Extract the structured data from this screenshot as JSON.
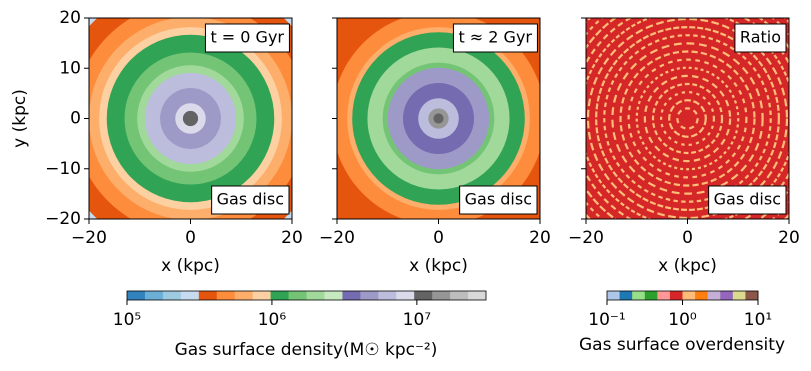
{
  "chart_data": [
    {
      "type": "image",
      "annotations": [
        "t = 0 Gyr",
        "Gas disc"
      ],
      "xlabel": "x (kpc)",
      "ylabel": "y (kpc)",
      "xlim": [
        -20,
        20
      ],
      "ylim": [
        -20,
        20
      ],
      "xticks": [
        {
          "value": -20,
          "label": "−20"
        },
        0,
        20
      ],
      "yticks": [
        {
          "value": -20,
          "label": "−20"
        },
        {
          "value": -10,
          "label": "−10"
        },
        0,
        10,
        20
      ]
    },
    {
      "type": "image",
      "annotations": [
        "t ≈ 2 Gyr",
        "Gas disc"
      ],
      "xlabel": "x (kpc)",
      "sharey": true,
      "xlim": [
        -20,
        20
      ],
      "ylim": [
        -20,
        20
      ],
      "xticks": [
        {
          "value": -20,
          "label": "−20"
        },
        0,
        20
      ]
    },
    {
      "type": "image",
      "annotations": [
        "Ratio",
        "Gas disc"
      ],
      "xlabel": "x (kpc)",
      "sharey": true,
      "xlim": [
        -20,
        20
      ],
      "ylim": [
        -20,
        20
      ],
      "xticks": [
        {
          "value": -20,
          "label": "−20"
        },
        0,
        20
      ]
    },
    {
      "type": "colorbar",
      "label": "Gas surface density(M☉ kpc⁻²)",
      "log_scale": true,
      "lim": [
        100000,
        30000000
      ],
      "ticks": [
        {
          "value": 100000,
          "label": "10⁵"
        },
        {
          "value": 1000000,
          "label": "10⁶"
        },
        {
          "value": 10000000,
          "label": "10⁷"
        }
      ],
      "colors": [
        "#3182bd",
        "#6baed6",
        "#9ecae1",
        "#c6dbef",
        "#e6550d",
        "#fd8d3c",
        "#fdae6b",
        "#fdd0a2",
        "#31a354",
        "#74c476",
        "#a1d99b",
        "#c7e9c0",
        "#756bb1",
        "#9e9ac8",
        "#bcbddc",
        "#dadaeb",
        "#636363",
        "#969696",
        "#bdbdbd",
        "#d9d9d9"
      ]
    },
    {
      "type": "colorbar",
      "label": "Gas surface overdensity",
      "log_scale": true,
      "lim": [
        0.1,
        10
      ],
      "ticks": [
        {
          "value": 0.1,
          "label": "10⁻¹"
        },
        {
          "value": 1,
          "label": "10⁰"
        },
        {
          "value": 10,
          "label": "10¹"
        }
      ],
      "colors": [
        "#aec7e8",
        "#1f77b4",
        "#98df8a",
        "#2ca02c",
        "#ff9896",
        "#d62728",
        "#ffbb78",
        "#ff7f0e",
        "#c5b0d5",
        "#9467bd",
        "#dbdb8d",
        "#8c564b"
      ]
    }
  ]
}
